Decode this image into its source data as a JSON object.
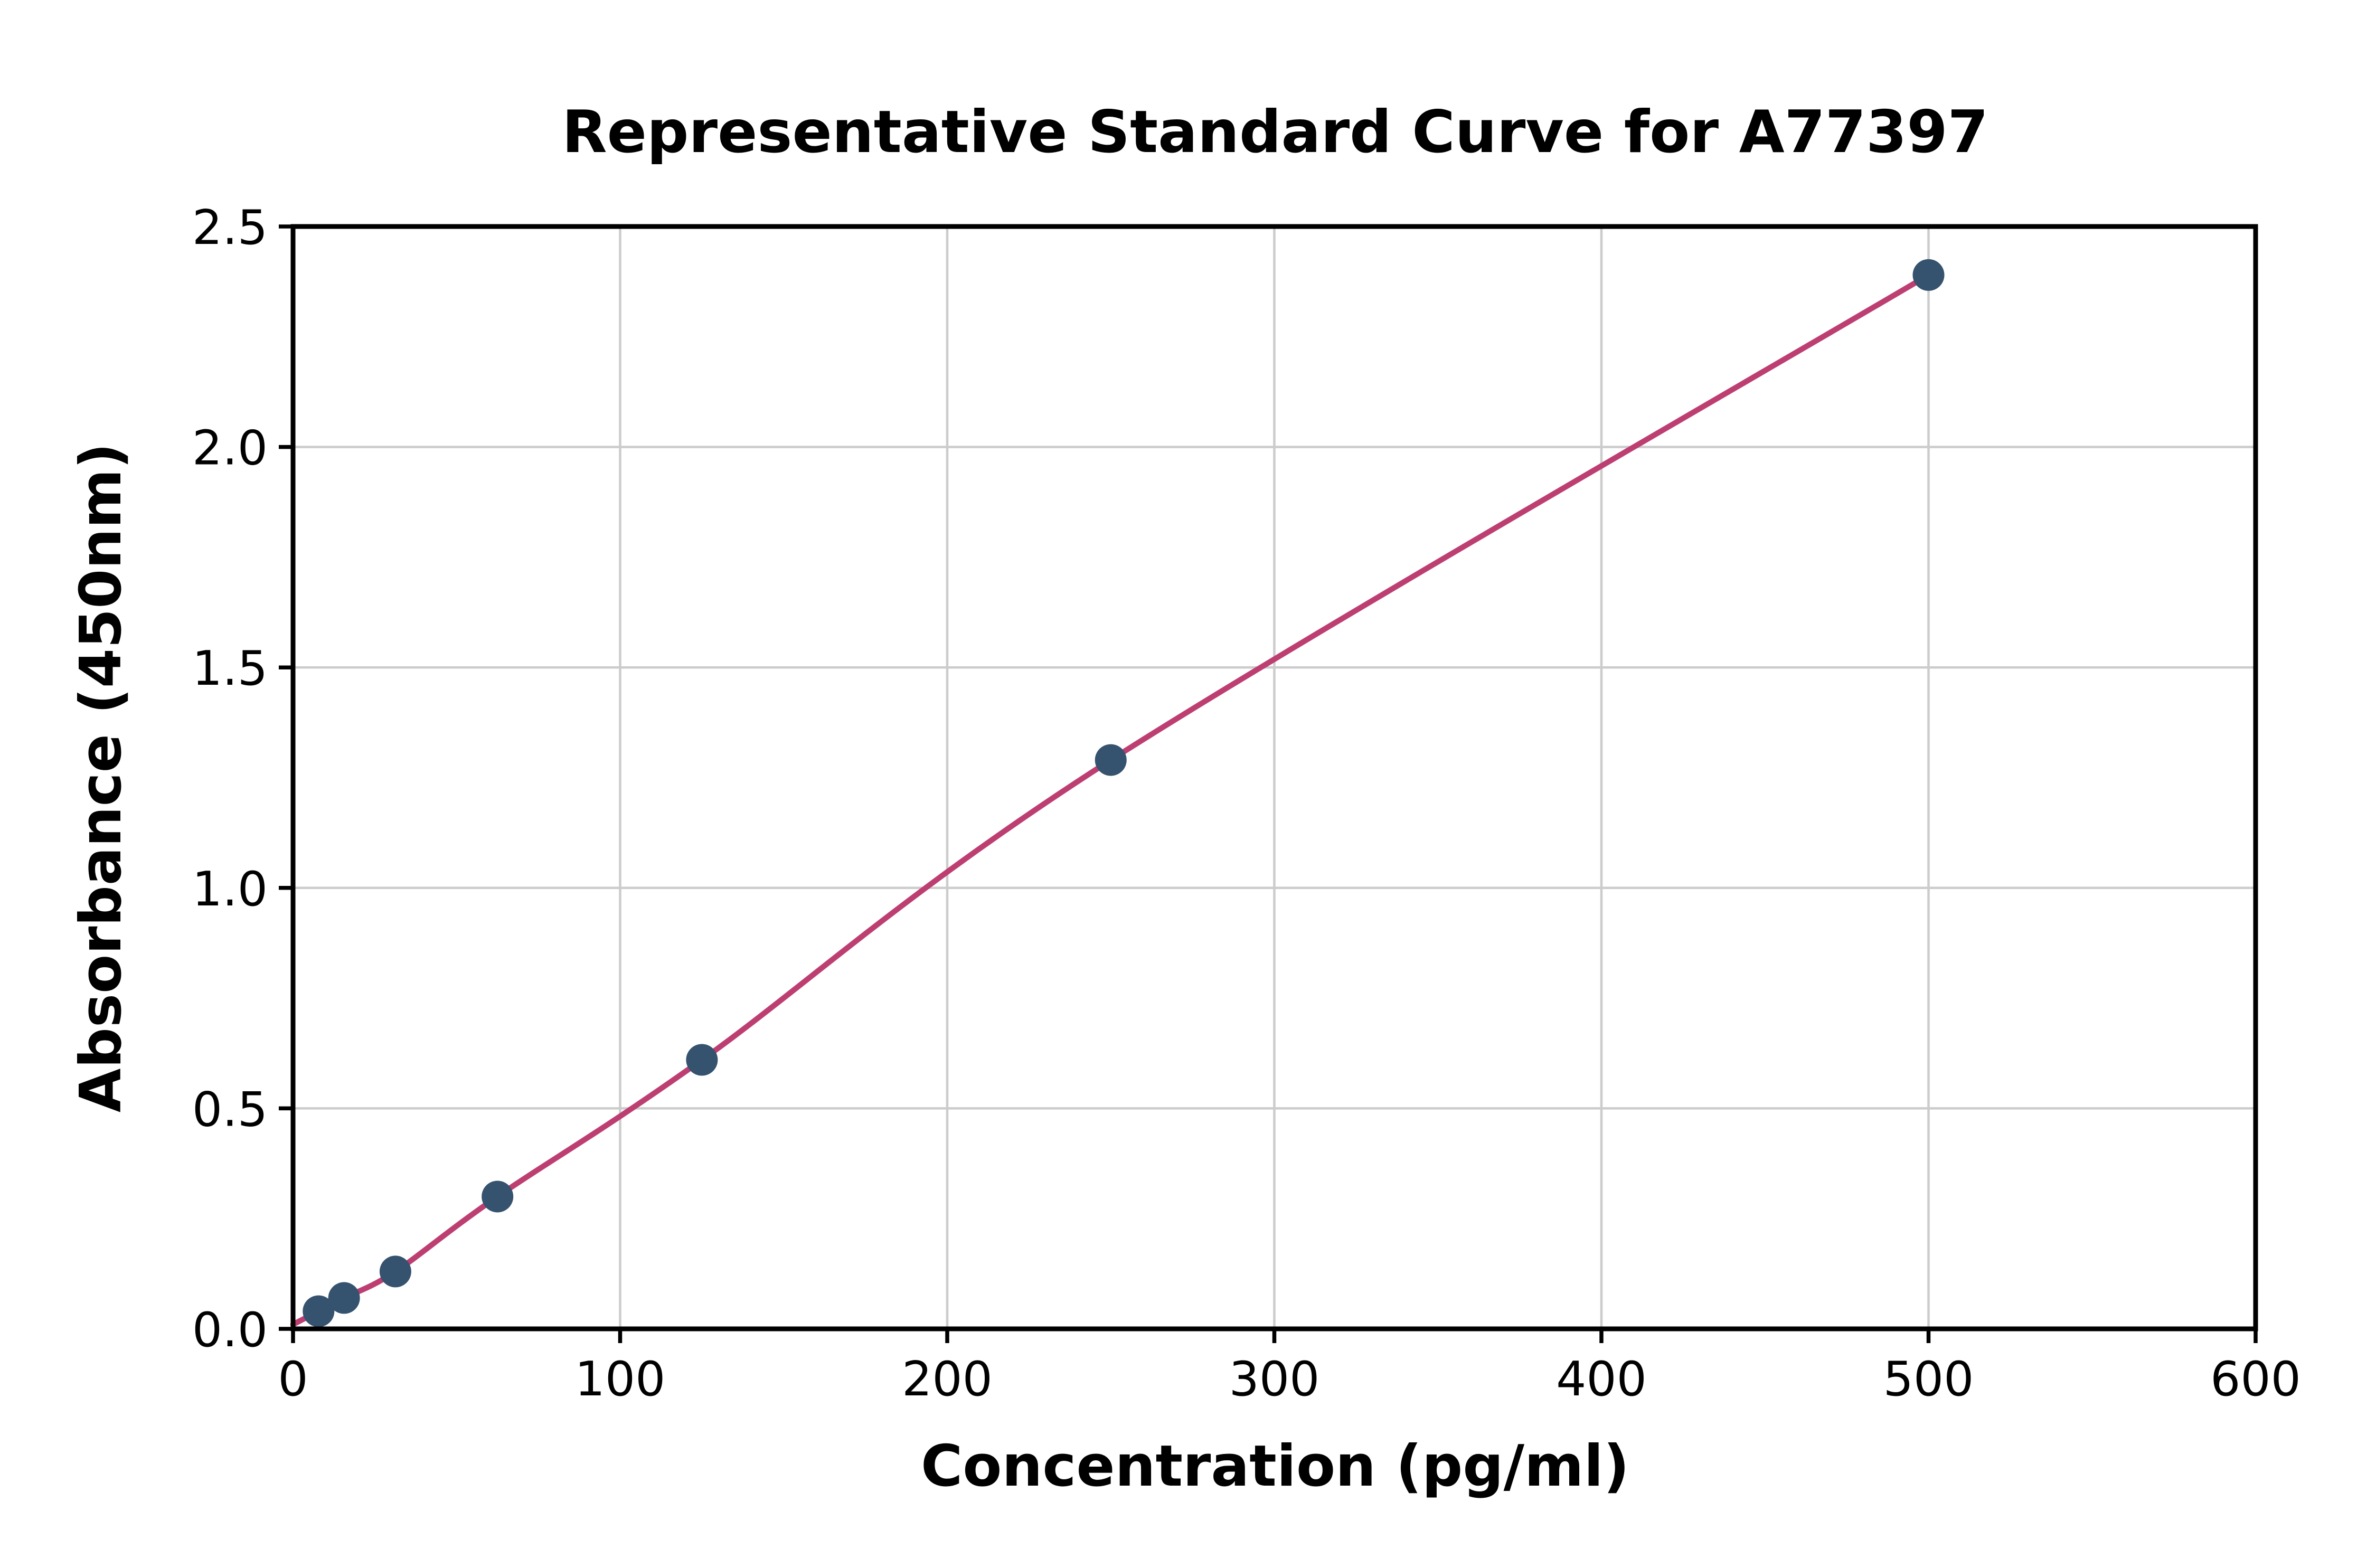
{
  "chart_data": {
    "type": "line",
    "title": "Representative Standard Curve for A77397",
    "xlabel": "Concentration (pg/ml)",
    "ylabel": "Absorbance (450nm)",
    "x": [
      7.8,
      15.6,
      31.3,
      62.5,
      125,
      250,
      500
    ],
    "y": [
      0.04,
      0.07,
      0.13,
      0.3,
      0.61,
      1.29,
      2.39
    ],
    "curve_start": {
      "x": 0,
      "y": 0.01
    },
    "xlim": [
      0,
      600
    ],
    "ylim": [
      0,
      2.5
    ],
    "x_ticks": [
      0,
      100,
      200,
      300,
      400,
      500,
      600
    ],
    "y_ticks": [
      0,
      0.5,
      1.0,
      1.5,
      2.0,
      2.5
    ],
    "x_tick_labels": [
      "0",
      "100",
      "200",
      "300",
      "400",
      "500",
      "600"
    ],
    "y_tick_labels": [
      "0.0",
      "0.5",
      "1.0",
      "1.5",
      "2.0",
      "2.5"
    ],
    "grid": true,
    "legend_position": "none",
    "line_color": "#bd3f72",
    "marker_color": "#35526e",
    "grid_color": "#cccccc",
    "axis_color": "#000000",
    "background_color": "#ffffff"
  }
}
